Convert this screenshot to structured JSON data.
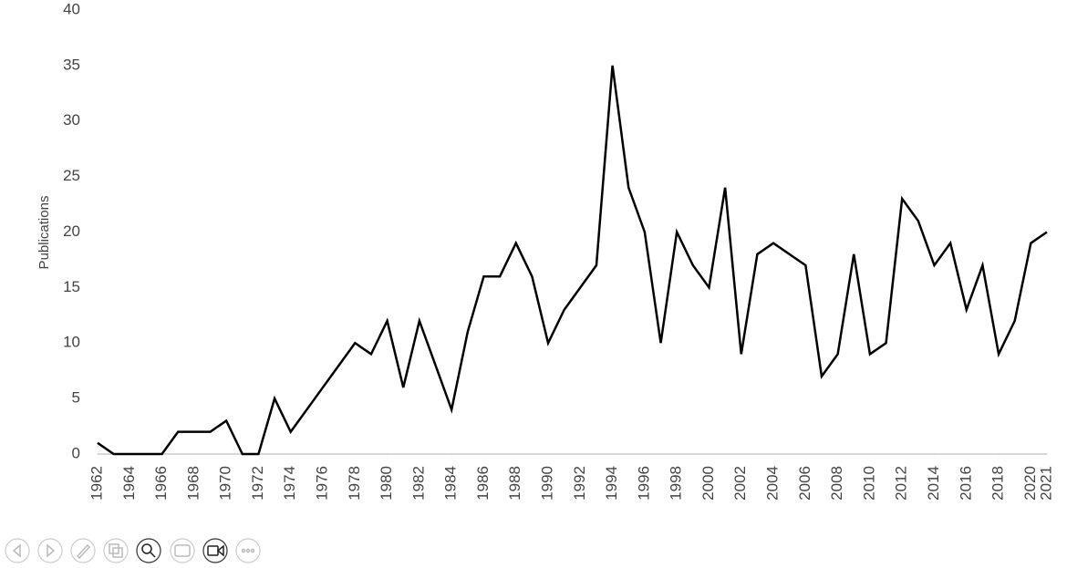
{
  "chart_data": {
    "type": "line",
    "y_label": "Publications",
    "x": [
      1962,
      1963,
      1964,
      1965,
      1966,
      1967,
      1968,
      1969,
      1970,
      1971,
      1972,
      1973,
      1974,
      1975,
      1976,
      1977,
      1978,
      1979,
      1980,
      1981,
      1982,
      1983,
      1984,
      1985,
      1986,
      1987,
      1988,
      1989,
      1990,
      1991,
      1992,
      1993,
      1994,
      1995,
      1996,
      1997,
      1998,
      1999,
      2000,
      2001,
      2002,
      2003,
      2004,
      2005,
      2006,
      2007,
      2008,
      2009,
      2010,
      2011,
      2012,
      2013,
      2014,
      2015,
      2016,
      2017,
      2018,
      2019,
      2020,
      2021
    ],
    "values": [
      1,
      0,
      0,
      0,
      0,
      2,
      2,
      2,
      3,
      0,
      0,
      5,
      2,
      4,
      6,
      8,
      10,
      9,
      12,
      6,
      12,
      8,
      4,
      11,
      16,
      16,
      19,
      16,
      10,
      13,
      15,
      17,
      35,
      24,
      20,
      10,
      20,
      17,
      15,
      24,
      9,
      18,
      19,
      18,
      17,
      7,
      9,
      18,
      9,
      10,
      23,
      21,
      17,
      19,
      13,
      17,
      9,
      12,
      19,
      20
    ],
    "color": "#000000",
    "xlim": [
      1962,
      2021
    ],
    "xticks": [
      1962,
      1964,
      1966,
      1968,
      1970,
      1972,
      1974,
      1976,
      1978,
      1980,
      1982,
      1984,
      1986,
      1988,
      1990,
      1992,
      1994,
      1996,
      1998,
      2000,
      2002,
      2004,
      2006,
      2008,
      2010,
      2012,
      2014,
      2016,
      2018,
      2020,
      2021
    ],
    "ylim": [
      0,
      40
    ],
    "yticks": [
      0,
      5,
      10,
      15,
      20,
      25,
      30,
      35,
      40
    ],
    "grid": false
  }
}
